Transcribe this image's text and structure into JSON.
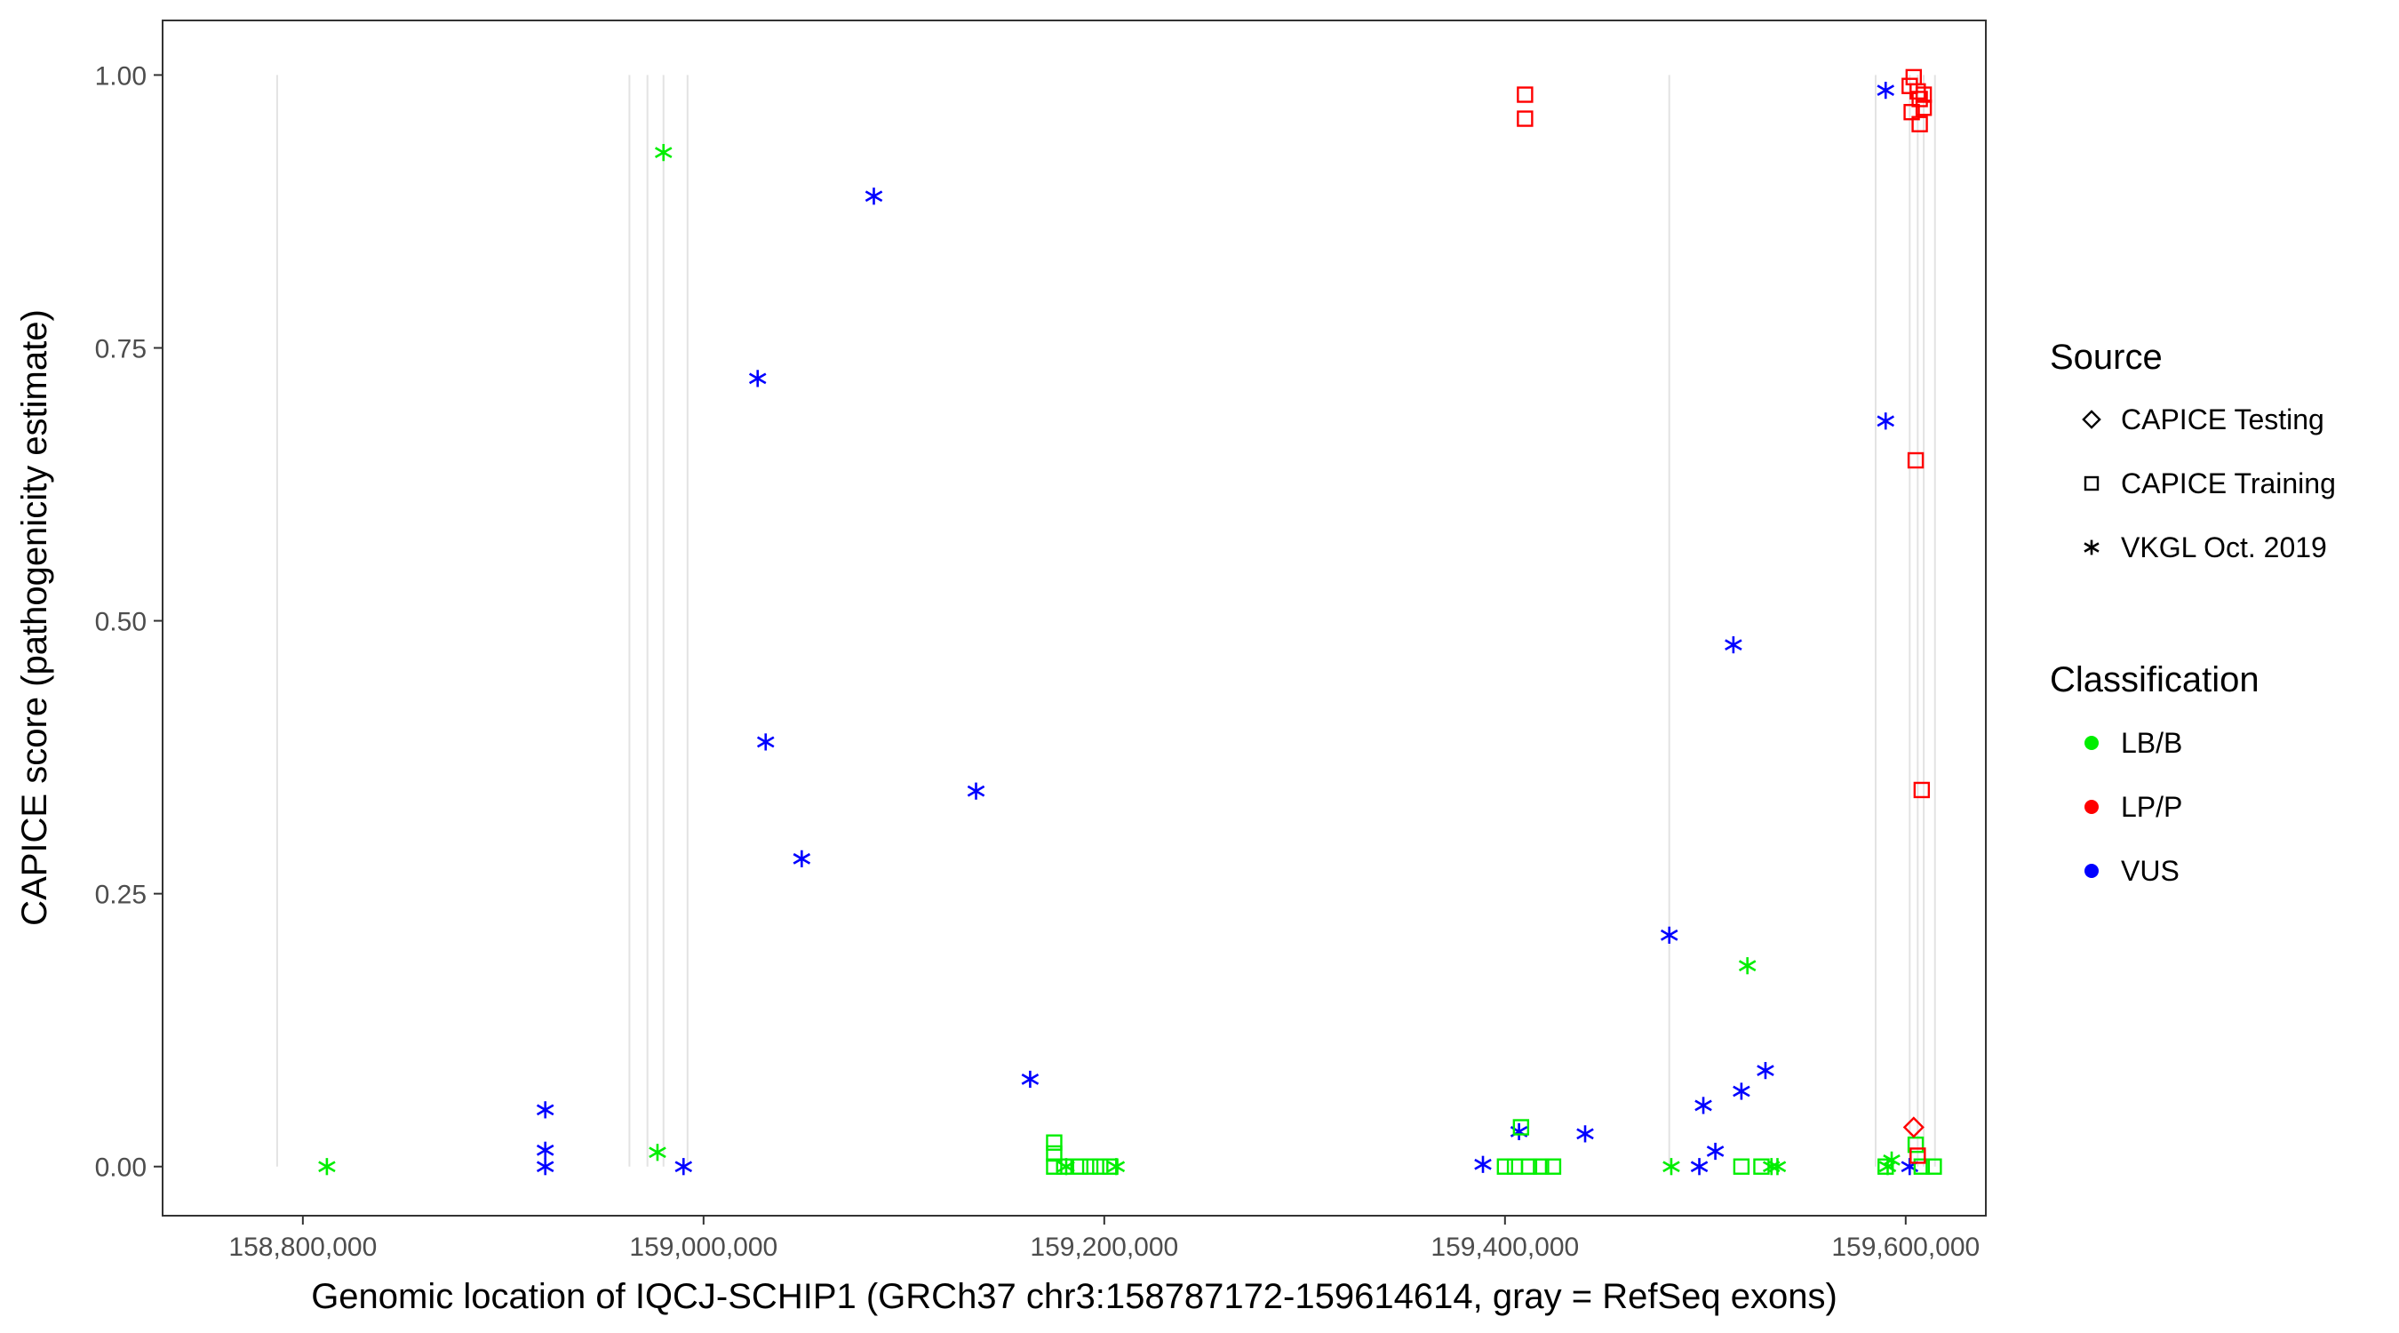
{
  "chart_data": {
    "type": "scatter",
    "xlabel": "Genomic location of IQCJ-SCHIP1 (GRCh37 chr3:158787172-159614614, gray = RefSeq exons)",
    "ylabel": "CAPICE score (pathogenicity estimate)",
    "xlim": [
      158730000,
      159640000
    ],
    "ylim": [
      -0.045,
      1.05
    ],
    "x_ticks": [
      158800000,
      159000000,
      159200000,
      159400000,
      159600000
    ],
    "x_tick_labels": [
      "158,800,000",
      "159,000,000",
      "159,200,000",
      "159,400,000",
      "159,600,000"
    ],
    "y_ticks": [
      0,
      0.25,
      0.5,
      0.75,
      1.0
    ],
    "y_tick_labels": [
      "0.00",
      "0.25",
      "0.50",
      "0.75",
      "1.00"
    ],
    "grid": false,
    "exon_lines_x": [
      158787172,
      158963000,
      158972000,
      158980000,
      158992000,
      159482000,
      159585000,
      159602000,
      159606000,
      159609000,
      159614614
    ],
    "legend_position": "right",
    "legend": {
      "source_title": "Source",
      "source_items": [
        {
          "label": "CAPICE Testing",
          "shape": "diamond"
        },
        {
          "label": "CAPICE Training",
          "shape": "square"
        },
        {
          "label": "VKGL Oct. 2019",
          "shape": "asterisk"
        }
      ],
      "class_title": "Classification",
      "class_items": [
        {
          "label": "LB/B",
          "color": "#00ee00"
        },
        {
          "label": "LP/P",
          "color": "#ff0000"
        },
        {
          "label": "VUS",
          "color": "#0000ff"
        }
      ]
    },
    "colors": {
      "LB/B": "#00ee00",
      "LP/P": "#ff0000",
      "VUS": "#0000ff"
    },
    "series": [
      {
        "source": "VKGL Oct. 2019",
        "classification": "VUS",
        "points": [
          [
            158921000,
            0.052
          ],
          [
            158921000,
            0.015
          ],
          [
            158921000,
            0.0
          ],
          [
            158990000,
            0.0
          ],
          [
            159027000,
            0.722
          ],
          [
            159031000,
            0.389
          ],
          [
            159049000,
            0.282
          ],
          [
            159085000,
            0.889
          ],
          [
            159136000,
            0.344
          ],
          [
            159163000,
            0.08
          ],
          [
            159389000,
            0.002
          ],
          [
            159407000,
            0.032
          ],
          [
            159440000,
            0.03
          ],
          [
            159482000,
            0.212
          ],
          [
            159497000,
            0.0
          ],
          [
            159499000,
            0.056
          ],
          [
            159505000,
            0.014
          ],
          [
            159514000,
            0.478
          ],
          [
            159518000,
            0.069
          ],
          [
            159530000,
            0.088
          ],
          [
            159590000,
            0.986
          ],
          [
            159590000,
            0.683
          ],
          [
            159602000,
            0.0
          ]
        ]
      },
      {
        "source": "VKGL Oct. 2019",
        "classification": "LB/B",
        "points": [
          [
            158812000,
            0.0
          ],
          [
            158977000,
            0.013
          ],
          [
            158980000,
            0.929
          ],
          [
            159181000,
            0.0
          ],
          [
            159206000,
            0.0
          ],
          [
            159483000,
            0.0
          ],
          [
            159521000,
            0.184
          ],
          [
            159533000,
            0.0
          ],
          [
            159536000,
            0.0
          ],
          [
            159591000,
            0.0
          ],
          [
            159593000,
            0.006
          ]
        ]
      },
      {
        "source": "CAPICE Training",
        "classification": "LB/B",
        "points": [
          [
            159175000,
            0.022
          ],
          [
            159175000,
            0.012
          ],
          [
            159175000,
            0.0
          ],
          [
            159180000,
            0.0
          ],
          [
            159188000,
            0.0
          ],
          [
            159193000,
            0.0
          ],
          [
            159198000,
            0.0
          ],
          [
            159203000,
            0.0
          ],
          [
            159400000,
            0.0
          ],
          [
            159405000,
            0.0
          ],
          [
            159408000,
            0.036
          ],
          [
            159412000,
            0.0
          ],
          [
            159418000,
            0.0
          ],
          [
            159424000,
            0.0
          ],
          [
            159518000,
            0.0
          ],
          [
            159528000,
            0.0
          ],
          [
            159590000,
            0.0
          ],
          [
            159605000,
            0.02
          ],
          [
            159608000,
            0.0
          ],
          [
            159614000,
            0.0
          ]
        ]
      },
      {
        "source": "CAPICE Training",
        "classification": "LP/P",
        "points": [
          [
            159410000,
            0.982
          ],
          [
            159410000,
            0.96
          ],
          [
            159602000,
            0.99
          ],
          [
            159603000,
            0.966
          ],
          [
            159604000,
            0.998
          ],
          [
            159605000,
            0.647
          ],
          [
            159606000,
            0.985
          ],
          [
            159607000,
            0.978
          ],
          [
            159607000,
            0.955
          ],
          [
            159608000,
            0.345
          ],
          [
            159609000,
            0.97
          ],
          [
            159609000,
            0.982
          ],
          [
            159606000,
            0.01
          ]
        ]
      },
      {
        "source": "CAPICE Testing",
        "classification": "LP/P",
        "points": [
          [
            159604000,
            0.036
          ]
        ]
      }
    ]
  }
}
